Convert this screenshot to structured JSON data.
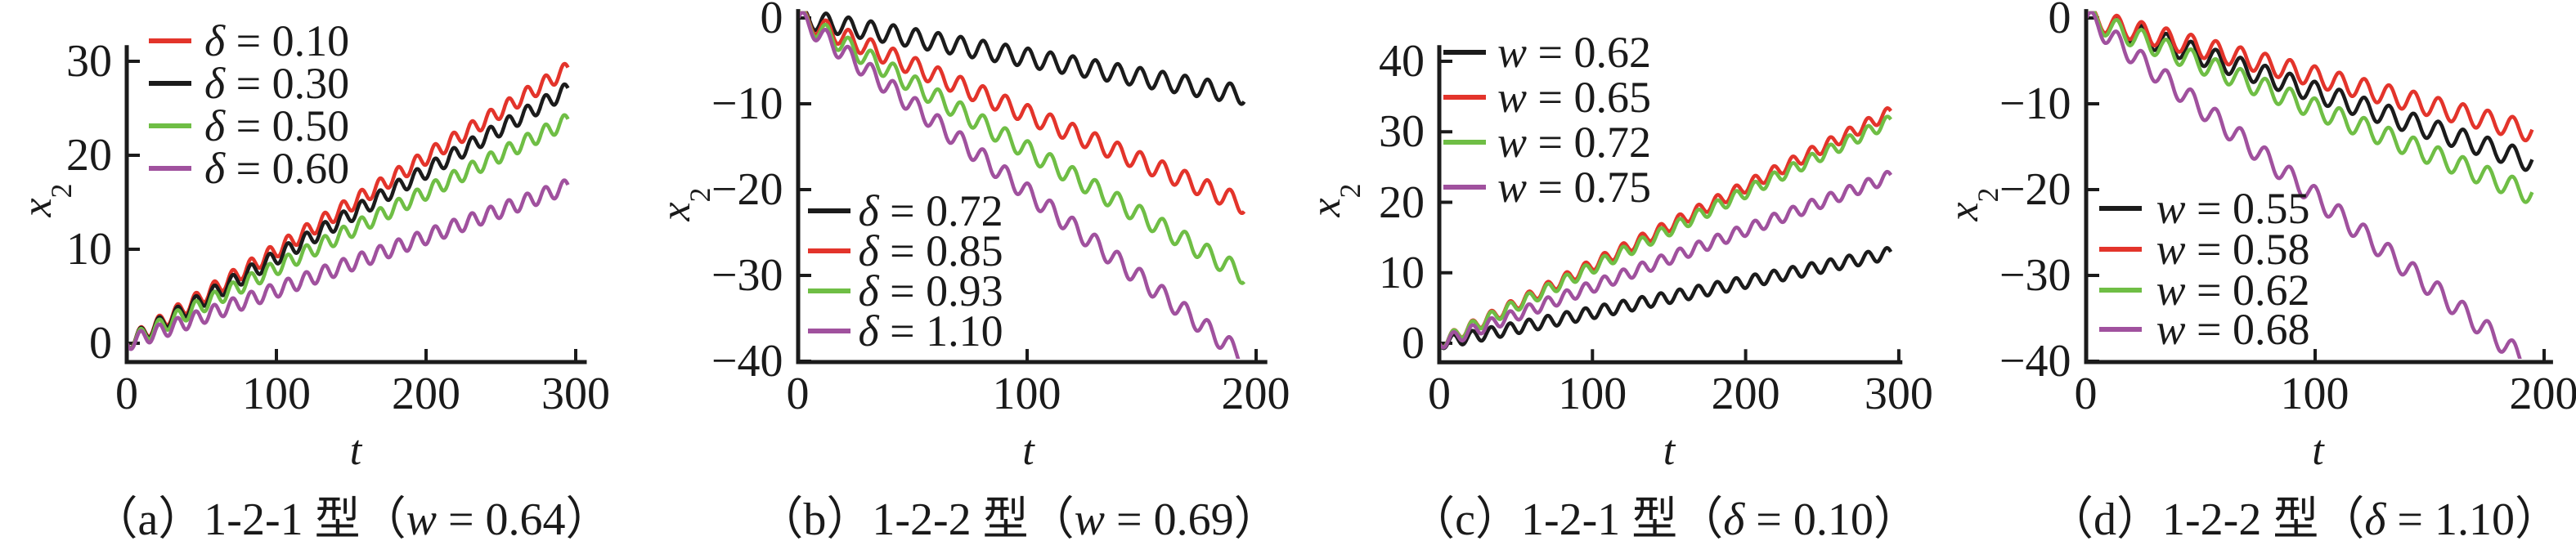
{
  "figure": {
    "background": "#ffffff",
    "axis_color": "#1b1b1b",
    "text_color": "#1a1a1a"
  },
  "chart_data": [
    {
      "type": "line",
      "panel": "a",
      "caption": {
        "full": "（a）1-2-1 型（w = 0.64）",
        "prefix": "（a）1-2-1 型（",
        "symbol": "w",
        "suffix": " = 0.64）"
      },
      "xlabel": "t",
      "ylabel_base": "x",
      "ylabel_sub": "2",
      "xlim": [
        0,
        306
      ],
      "ylim": [
        -2,
        31.5
      ],
      "xticks": [
        "0",
        "100",
        "200",
        "300"
      ],
      "xtick_values": [
        0,
        100,
        200,
        300
      ],
      "yticks": [
        "0",
        "10",
        "20",
        "30"
      ],
      "ytick_values": [
        0,
        10,
        20,
        30
      ],
      "grid": false,
      "legend_position": "top-left",
      "t_end": 295,
      "oscillation": {
        "amplitude": 0.8,
        "period": 12.3
      },
      "series": [
        {
          "label": "δ = 0.10",
          "symbol": "δ",
          "rest": " = 0.10",
          "color": "#e3342b",
          "end_value": 29.2
        },
        {
          "label": "δ = 0.30",
          "symbol": "δ",
          "rest": " = 0.30",
          "color": "#1b1b1b",
          "end_value": 27.0
        },
        {
          "label": "δ = 0.50",
          "symbol": "δ",
          "rest": " = 0.50",
          "color": "#6fbe45",
          "end_value": 23.7
        },
        {
          "label": "δ = 0.60",
          "symbol": "δ",
          "rest": " = 0.60",
          "color": "#a0519e",
          "end_value": 16.7
        }
      ]
    },
    {
      "type": "line",
      "panel": "b",
      "caption": {
        "full": "（b）1-2-2 型（w = 0.69）",
        "prefix": "（b）1-2-2 型（",
        "symbol": "w",
        "suffix": " = 0.69）"
      },
      "xlabel": "t",
      "ylabel_base": "x",
      "ylabel_sub": "2",
      "xlim": [
        0,
        204
      ],
      "ylim": [
        -40.1,
        0.8
      ],
      "xticks": [
        "0",
        "100",
        "200"
      ],
      "xtick_values": [
        0,
        100,
        200
      ],
      "yticks": [
        "0",
        "−10",
        "−20",
        "−30",
        "−40"
      ],
      "ytick_values": [
        0,
        -10,
        -20,
        -30,
        -40
      ],
      "grid": false,
      "legend_position": "center-left",
      "t_end": 195,
      "oscillation": {
        "amplitude": 1.1,
        "period": 9.8
      },
      "series": [
        {
          "label": "δ = 0.72",
          "symbol": "δ",
          "rest": " = 0.72",
          "color": "#1b1b1b",
          "end_value": -9.0
        },
        {
          "label": "δ = 0.85",
          "symbol": "δ",
          "rest": " = 0.85",
          "color": "#e3342b",
          "end_value": -21.8
        },
        {
          "label": "δ = 0.93",
          "symbol": "δ",
          "rest": " = 0.93",
          "color": "#6fbe45",
          "end_value": -30.0
        },
        {
          "label": "δ = 1.10",
          "symbol": "δ",
          "rest": " = 1.10",
          "color": "#a0519e",
          "end_value": -39.6
        }
      ]
    },
    {
      "type": "line",
      "panel": "c",
      "caption": {
        "full": "（c）1-2-1 型（δ = 0.10）",
        "prefix": "（c）1-2-1 型（",
        "symbol": "δ",
        "suffix": " = 0.10）"
      },
      "xlabel": "t",
      "ylabel_base": "x",
      "ylabel_sub": "2",
      "xlim": [
        0,
        301
      ],
      "ylim": [
        -2.7,
        42
      ],
      "xticks": [
        "0",
        "100",
        "200",
        "300"
      ],
      "xtick_values": [
        0,
        100,
        200,
        300
      ],
      "yticks": [
        "0",
        "10",
        "20",
        "30",
        "40"
      ],
      "ytick_values": [
        0,
        10,
        20,
        30,
        40
      ],
      "grid": false,
      "legend_position": "top-left",
      "t_end": 295,
      "oscillation": {
        "amplitude": 0.85,
        "period": 12.3
      },
      "series": [
        {
          "label": "w = 0.62",
          "symbol": "w",
          "rest": " = 0.62",
          "color": "#1b1b1b",
          "end_value": 12.8
        },
        {
          "label": "w = 0.65",
          "symbol": "w",
          "rest": " = 0.65",
          "color": "#e3342b",
          "end_value": 32.8
        },
        {
          "label": "w = 0.72",
          "symbol": "w",
          "rest": " = 0.72",
          "color": "#6fbe45",
          "end_value": 31.6
        },
        {
          "label": "w = 0.75",
          "symbol": "w",
          "rest": " = 0.75",
          "color": "#a0519e",
          "end_value": 23.7
        }
      ]
    },
    {
      "type": "line",
      "panel": "d",
      "caption": {
        "full": "（d）1-2-2 型（δ = 1.10）",
        "prefix": "（d）1-2-2 型（",
        "symbol": "δ",
        "suffix": " = 1.10）"
      },
      "xlabel": "t",
      "ylabel_base": "x",
      "ylabel_sub": "2",
      "xlim": [
        0,
        203
      ],
      "ylim": [
        -40.1,
        0.8
      ],
      "xticks": [
        "0",
        "100",
        "200"
      ],
      "xtick_values": [
        0,
        100,
        200
      ],
      "yticks": [
        "0",
        "−10",
        "−20",
        "−30",
        "−40"
      ],
      "ytick_values": [
        0,
        -10,
        -20,
        -30,
        -40
      ],
      "grid": false,
      "legend_position": "center-left",
      "t_end": 195,
      "oscillation": {
        "amplitude": 1.2,
        "period": 10.8
      },
      "series": [
        {
          "label": "w = 0.55",
          "symbol": "w",
          "rest": " = 0.55",
          "color": "#1b1b1b",
          "end_value": -16.8
        },
        {
          "label": "w = 0.58",
          "symbol": "w",
          "rest": " = 0.58",
          "color": "#e3342b",
          "end_value": -13.3
        },
        {
          "label": "w = 0.62",
          "symbol": "w",
          "rest": " = 0.62",
          "color": "#6fbe45",
          "end_value": -20.6
        },
        {
          "label": "w = 0.68",
          "symbol": "w",
          "rest": " = 0.68",
          "color": "#a0519e",
          "end_value": -40.6
        }
      ]
    }
  ]
}
